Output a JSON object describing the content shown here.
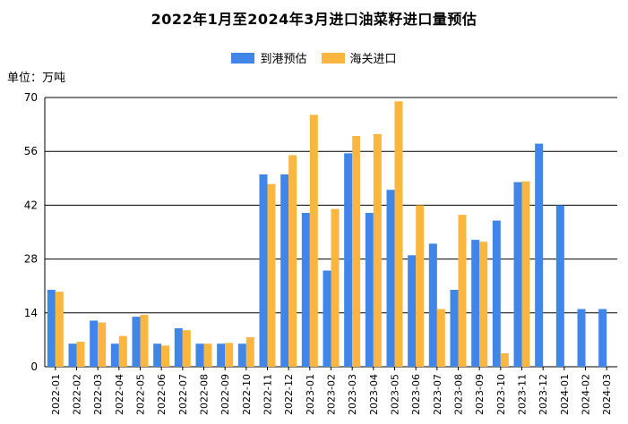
{
  "chart_data": {
    "type": "bar",
    "title": "2022年1月至2024年3月进口油菜籽进口量预估",
    "unit_label": "单位：万吨",
    "ylim": [
      0,
      70
    ],
    "yticks": [
      0,
      14,
      28,
      42,
      56,
      70
    ],
    "categories": [
      "2022-01",
      "2022-02",
      "2022-03",
      "2022-04",
      "2022-05",
      "2022-06",
      "2022-07",
      "2022-08",
      "2022-09",
      "2022-10",
      "2022-11",
      "2022-12",
      "2023-01",
      "2023-02",
      "2023-03",
      "2023-04",
      "2023-05",
      "2023-06",
      "2023-07",
      "2023-08",
      "2023-09",
      "2023-10",
      "2023-11",
      "2023-12",
      "2024-01",
      "2024-02",
      "2024-03"
    ],
    "series": [
      {
        "name": "到港预估",
        "color": "#3F86E8",
        "values": [
          20,
          6,
          12,
          6,
          13,
          6,
          10,
          6,
          6,
          6,
          50,
          50,
          40,
          25,
          55.5,
          40,
          46,
          29,
          32,
          20,
          33,
          38,
          48,
          58,
          42,
          15,
          15
        ]
      },
      {
        "name": "海关进口",
        "color": "#FBB640",
        "values": [
          19.5,
          6.5,
          11.5,
          8,
          13.5,
          5.5,
          9.5,
          6,
          6.2,
          7.7,
          47.5,
          55,
          65.5,
          41,
          60,
          60.5,
          69,
          42,
          15,
          39.5,
          32.5,
          3.5,
          48.2,
          null,
          null,
          null,
          null
        ]
      }
    ],
    "grid": true,
    "legend_position": "top-center"
  }
}
